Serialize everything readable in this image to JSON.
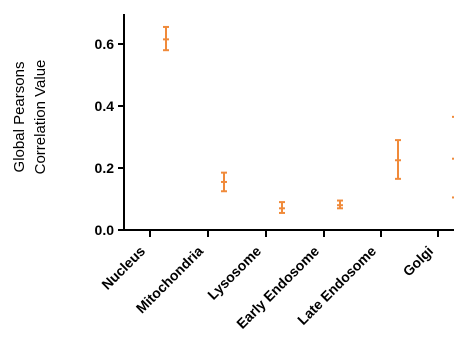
{
  "chart_data": {
    "type": "scatter",
    "title": "",
    "xlabel": "",
    "ylabel_lines": [
      "Global Pearsons",
      "Correlation Value"
    ],
    "ylim": [
      0,
      0.7
    ],
    "yticks": [
      0.0,
      0.2,
      0.4,
      0.6
    ],
    "ytick_labels": [
      "0.0",
      "0.2",
      "0.4",
      "0.6"
    ],
    "categories": [
      "Nucleus",
      "Mitochondria",
      "Lysosome",
      "Early Endosome",
      "Late Endosome",
      "Golgi"
    ],
    "series": [
      {
        "color": "#f08a3a",
        "values": [
          0.615,
          0.155,
          0.07,
          0.08,
          0.225,
          0.23
        ],
        "error_low": [
          0.58,
          0.125,
          0.055,
          0.07,
          0.165,
          0.105
        ],
        "error_high": [
          0.655,
          0.185,
          0.09,
          0.095,
          0.29,
          0.365
        ]
      }
    ],
    "grid": false,
    "legend": "none"
  }
}
